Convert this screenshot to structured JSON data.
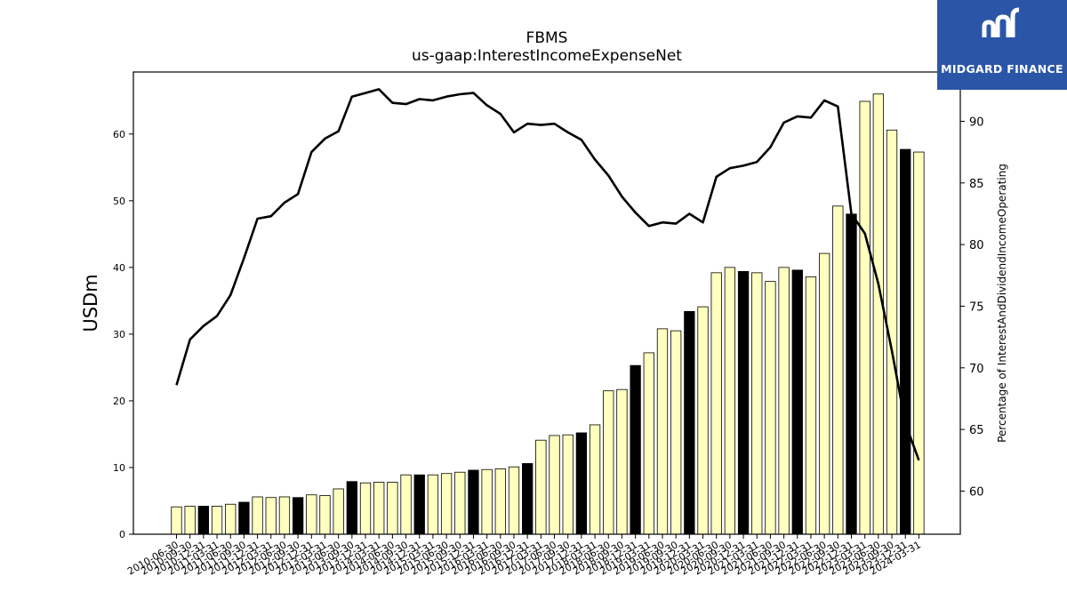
{
  "header": {
    "title": "FBMS",
    "subtitle": "us-gaap:InterestIncomeExpenseNet"
  },
  "logo": {
    "text": "MIDGARD FINANCE",
    "color": "#2b56a8"
  },
  "colors": {
    "bar_fill": "#ffffbf",
    "bar_highlight": "#000000",
    "line": "#000000"
  },
  "chart_data": {
    "type": "bar",
    "ylabel": "USDm",
    "y2label": "Percentage of InterestAndDividendIncomeOperating",
    "ylim": [
      0,
      69.3
    ],
    "y2lim": [
      56.5,
      94
    ],
    "yticks": [
      0,
      10,
      20,
      30,
      40,
      50,
      60
    ],
    "y2ticks": [
      60,
      65,
      70,
      75,
      80,
      85,
      90
    ],
    "categories": [
      "2010-06-30",
      "2010-09-30",
      "2010-12-31",
      "2011-03-31",
      "2011-06-30",
      "2011-09-30",
      "2011-12-31",
      "2012-03-31",
      "2012-06-30",
      "2012-09-30",
      "2012-12-31",
      "2013-03-31",
      "2013-06-30",
      "2013-09-30",
      "2013-12-31",
      "2014-03-31",
      "2014-06-30",
      "2014-09-30",
      "2014-12-31",
      "2015-03-31",
      "2015-06-30",
      "2015-09-30",
      "2015-12-31",
      "2016-03-31",
      "2016-06-30",
      "2016-09-30",
      "2016-12-31",
      "2017-03-31",
      "2017-06-30",
      "2017-09-30",
      "2017-12-31",
      "2018-03-31",
      "2018-06-30",
      "2018-09-30",
      "2018-12-31",
      "2019-03-31",
      "2019-06-30",
      "2019-09-30",
      "2019-12-31",
      "2020-03-31",
      "2020-06-30",
      "2020-09-30",
      "2020-12-31",
      "2021-03-31",
      "2021-06-30",
      "2021-09-30",
      "2021-12-31",
      "2022-03-31",
      "2022-06-30",
      "2022-09-30",
      "2022-12-31",
      "2023-03-31",
      "2023-06-30",
      "2023-09-30",
      "2023-12-31",
      "2024-03-31"
    ],
    "tick_labels": [
      "2010-06-30",
      "2010-09-30",
      "2010-12-31",
      "2011-03-31",
      "2011-06-30",
      "2011-09-30",
      "2011-12-31",
      "2012-03-31",
      "2012-06-30",
      "2012-09-30",
      "2012-12-31",
      "2013-03-31",
      "2013-06-30",
      "2013-09-30",
      "2013-12-31",
      "2014-03-31",
      "2014-06-30",
      "2014-09-30",
      "2014-12-31",
      "2015-03-31",
      "2015-06-30",
      "2015-09-30",
      "2015-12-31",
      "2016-03-31",
      "2016-06-30",
      "2016-09-30",
      "2016-12-31",
      "2017-03-31",
      "2017-06-30",
      "2017-09-30",
      "2017-12-31",
      "2018-03-31",
      "2018-06-30",
      "2018-09-30",
      "2018-12-31",
      "2019-03-31",
      "2019-06-30",
      "2019-09-30",
      "2019-12-31",
      "2020-03-31",
      "2020-06-30",
      "2020-09-30",
      "2020-12-31",
      "2021-03-31",
      "2021-06-30",
      "2021-09-30",
      "2021-12-31",
      "2022-03-31",
      "2022-06-30",
      "2022-09-30",
      "2022-12-31",
      "2023-03-31",
      "2023-06-30",
      "2023-09-30",
      "2023-12-31",
      "2024-03-31"
    ],
    "bar_values": [
      4.1,
      4.2,
      4.2,
      4.2,
      4.5,
      4.8,
      5.6,
      5.5,
      5.6,
      5.5,
      5.9,
      5.8,
      6.8,
      7.9,
      7.7,
      7.8,
      7.8,
      8.9,
      8.9,
      8.9,
      9.1,
      9.3,
      9.6,
      9.7,
      9.8,
      10.1,
      10.6,
      14.1,
      14.8,
      14.9,
      15.2,
      16.4,
      21.5,
      21.7,
      25.3,
      27.2,
      30.8,
      30.5,
      33.4,
      34.1,
      39.2,
      40.0,
      39.4,
      39.2,
      37.9,
      40.0,
      39.6,
      38.6,
      42.1,
      49.2,
      48.0,
      64.9,
      66.0,
      60.6,
      57.7,
      57.3
    ],
    "highlight": [
      false,
      false,
      true,
      false,
      false,
      true,
      false,
      false,
      false,
      true,
      false,
      false,
      false,
      true,
      false,
      false,
      false,
      false,
      true,
      false,
      false,
      false,
      true,
      false,
      false,
      false,
      true,
      false,
      false,
      false,
      true,
      false,
      false,
      false,
      true,
      false,
      false,
      false,
      true,
      false,
      false,
      false,
      true,
      false,
      false,
      false,
      true,
      false,
      false,
      false,
      true,
      false,
      false,
      false,
      true,
      false
    ],
    "line_values": [
      68.6,
      72.3,
      73.4,
      74.2,
      75.9,
      78.9,
      82.1,
      82.3,
      83.4,
      84.1,
      87.5,
      88.6,
      89.2,
      92.0,
      92.3,
      92.6,
      91.5,
      91.4,
      91.8,
      91.7,
      92.0,
      92.2,
      92.3,
      91.3,
      90.6,
      89.1,
      89.8,
      89.7,
      89.8,
      89.1,
      88.5,
      86.9,
      85.6,
      83.9,
      82.6,
      81.5,
      81.8,
      81.7,
      82.5,
      81.8,
      85.5,
      86.2,
      86.4,
      86.7,
      87.9,
      89.9,
      90.4,
      90.3,
      91.7,
      91.2,
      82.5,
      80.9,
      76.8,
      71.4,
      65.5,
      62.5
    ]
  }
}
